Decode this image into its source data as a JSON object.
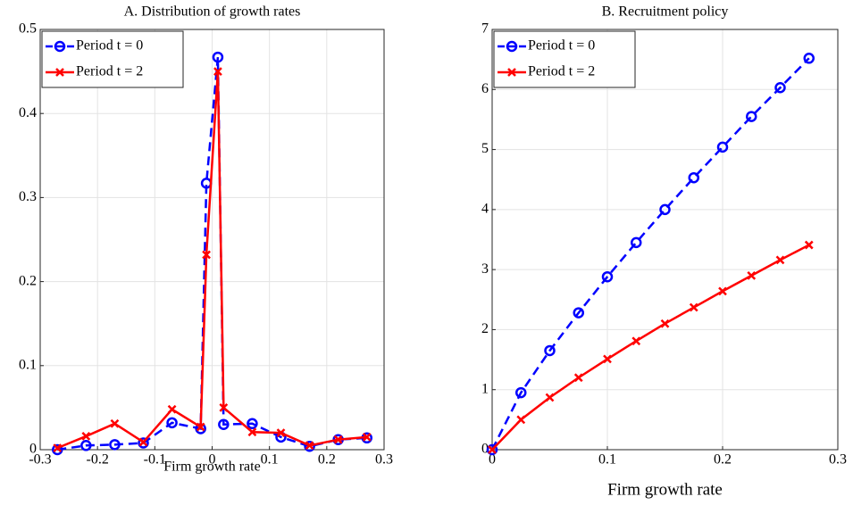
{
  "chart_data": [
    {
      "type": "line",
      "title": "A. Distribution of growth rates",
      "xlabel": "Firm growth rate",
      "xlim": [
        -0.3,
        0.3
      ],
      "ylim": [
        0,
        0.5
      ],
      "xticks": [
        -0.3,
        -0.2,
        -0.1,
        0,
        0.1,
        0.2,
        0.3
      ],
      "yticks": [
        0,
        0.1,
        0.2,
        0.3,
        0.4,
        0.5
      ],
      "grid": true,
      "legend": "upper-left",
      "series": [
        {
          "name": "Period t = 0",
          "color": "#0000ff",
          "x": [
            -0.27,
            -0.22,
            -0.17,
            -0.12,
            -0.07,
            -0.02,
            -0.01,
            0.01,
            0.02,
            0.07,
            0.12,
            0.17,
            0.22,
            0.27
          ],
          "values": [
            0.0,
            0.005,
            0.006,
            0.008,
            0.032,
            0.025,
            0.317,
            0.467,
            0.03,
            0.031,
            0.015,
            0.004,
            0.012,
            0.014
          ]
        },
        {
          "name": "Period t = 2",
          "color": "#ff0000",
          "x": [
            -0.27,
            -0.22,
            -0.17,
            -0.12,
            -0.07,
            -0.02,
            -0.01,
            0.01,
            0.02,
            0.07,
            0.12,
            0.17,
            0.22,
            0.27
          ],
          "values": [
            0.002,
            0.016,
            0.031,
            0.009,
            0.048,
            0.027,
            0.232,
            0.45,
            0.05,
            0.021,
            0.02,
            0.005,
            0.012,
            0.015
          ]
        }
      ]
    },
    {
      "type": "line",
      "title": "B. Recruitment policy",
      "xlabel": "Firm growth rate",
      "xlim": [
        0,
        0.3
      ],
      "ylim": [
        0,
        7
      ],
      "xticks": [
        0,
        0.1,
        0.2,
        0.3
      ],
      "yticks": [
        0,
        1,
        2,
        3,
        4,
        5,
        6,
        7
      ],
      "grid": true,
      "legend": "upper-left",
      "series": [
        {
          "name": "Period t = 0",
          "color": "#0000ff",
          "x": [
            0,
            0.025,
            0.05,
            0.075,
            0.1,
            0.125,
            0.15,
            0.175,
            0.2,
            0.225,
            0.25,
            0.275
          ],
          "values": [
            0,
            0.95,
            1.65,
            2.28,
            2.88,
            3.45,
            4.0,
            4.53,
            5.04,
            5.55,
            6.03,
            6.52
          ]
        },
        {
          "name": "Period t = 2",
          "color": "#ff0000",
          "x": [
            0,
            0.025,
            0.05,
            0.075,
            0.1,
            0.125,
            0.15,
            0.175,
            0.2,
            0.225,
            0.25,
            0.275
          ],
          "values": [
            0,
            0.5,
            0.87,
            1.2,
            1.51,
            1.81,
            2.1,
            2.37,
            2.64,
            2.9,
            3.16,
            3.41
          ]
        }
      ]
    }
  ]
}
